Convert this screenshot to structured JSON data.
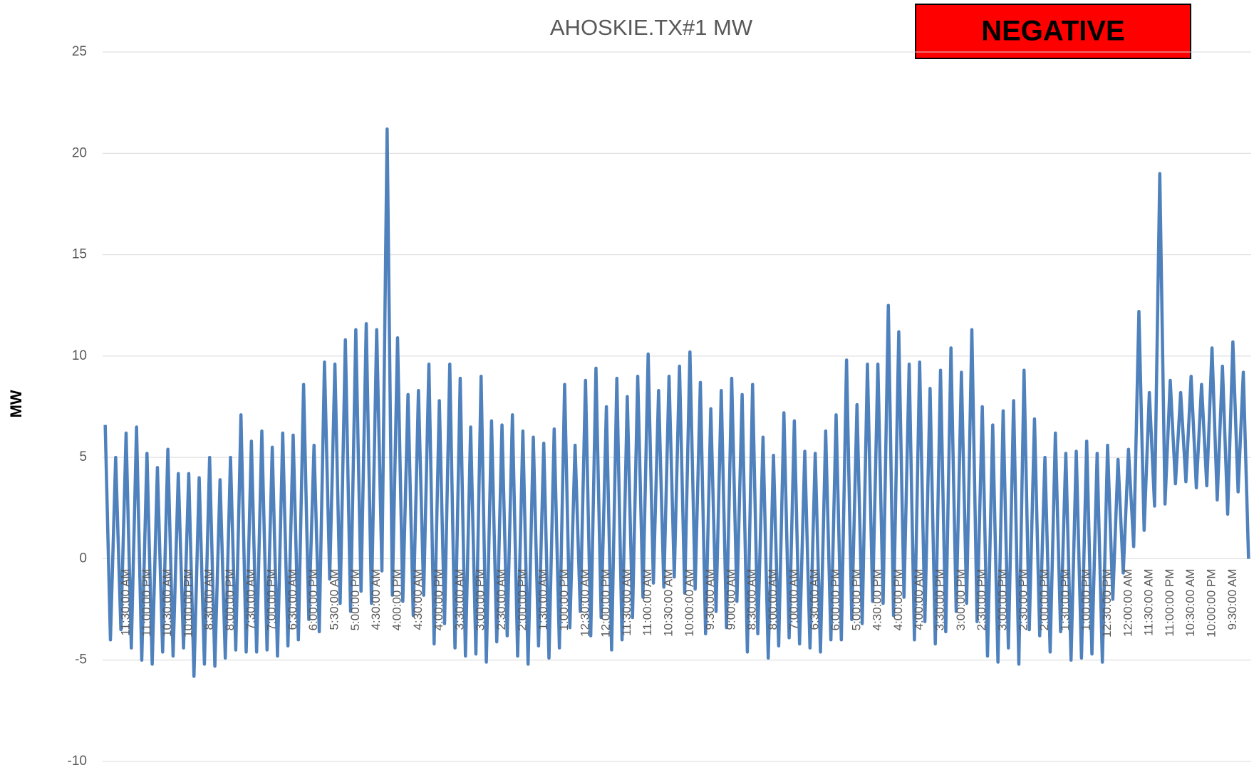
{
  "chart_data": {
    "type": "line",
    "title": "AHOSKIE.TX#1 MW",
    "annotation": "NEGATIVE",
    "y_label": "MW",
    "color": "#4f81bd",
    "ylim": [
      -10,
      25
    ],
    "yticks": [
      -10,
      -5,
      0,
      5,
      10,
      15,
      20,
      25
    ],
    "grid": true,
    "categories": [
      null,
      null,
      null,
      null,
      "11:30:00 AM",
      null,
      null,
      null,
      "11:00:00 PM",
      null,
      null,
      null,
      "10:30:00 AM",
      null,
      null,
      null,
      "10:00:00 PM",
      null,
      null,
      null,
      "8:30:00 AM",
      null,
      null,
      null,
      "8:00:00 PM",
      null,
      null,
      null,
      "7:30:00 AM",
      null,
      null,
      null,
      "7:00:00 PM",
      null,
      null,
      null,
      "6:30:00 AM",
      null,
      null,
      null,
      "6:00:00 PM",
      null,
      null,
      null,
      "5:30:00 AM",
      null,
      null,
      null,
      "5:00:00 PM",
      null,
      null,
      null,
      "4:30:00 AM",
      null,
      null,
      null,
      "4:00:00 PM",
      null,
      null,
      null,
      "4:30:00 AM",
      null,
      null,
      null,
      "4:00:00 PM",
      null,
      null,
      null,
      "3:30:00 AM",
      null,
      null,
      null,
      "3:00:00 PM",
      null,
      null,
      null,
      "2:30:00 AM",
      null,
      null,
      null,
      "2:00:00 PM",
      null,
      null,
      null,
      "1:30:00 AM",
      null,
      null,
      null,
      "1:00:00 PM",
      null,
      null,
      null,
      "12:30:00 AM",
      null,
      null,
      null,
      "12:00:00 PM",
      null,
      null,
      null,
      "11:30:00 AM",
      null,
      null,
      null,
      "11:00:00 AM",
      null,
      null,
      null,
      "10:30:00 AM",
      null,
      null,
      null,
      "10:00:00 AM",
      null,
      null,
      null,
      "9:30:00 AM",
      null,
      null,
      null,
      "9:00:00 AM",
      null,
      null,
      null,
      "8:30:00 AM",
      null,
      null,
      null,
      "8:00:00 AM",
      null,
      null,
      null,
      "7:00:00 AM",
      null,
      null,
      null,
      "6:30:00 AM",
      null,
      null,
      null,
      "6:00:00 PM",
      null,
      null,
      null,
      "5:00:00 PM",
      null,
      null,
      null,
      "4:30:00 PM",
      null,
      null,
      null,
      "4:00:00 PM",
      null,
      null,
      null,
      "4:00:00 AM",
      null,
      null,
      null,
      "3:30:00 PM",
      null,
      null,
      null,
      "3:00:00 PM",
      null,
      null,
      null,
      "2:30:00 PM",
      null,
      null,
      null,
      "3:00:00 PM",
      null,
      null,
      null,
      "2:30:00 PM",
      null,
      null,
      null,
      "2:00:00 PM",
      null,
      null,
      null,
      "1:30:00 PM",
      null,
      null,
      null,
      "1:00:00 PM",
      null,
      null,
      null,
      "12:30:00 PM",
      null,
      null,
      null,
      "12:00:00 AM",
      null,
      null,
      null,
      "11:30:00 AM",
      null,
      null,
      null,
      "11:00:00 PM",
      null,
      null,
      null,
      "10:30:00 AM",
      null,
      null,
      null,
      "10:00:00 PM",
      null,
      null,
      null,
      "9:30:00 AM",
      null,
      null,
      null
    ],
    "values": [
      6.6,
      -4,
      5,
      -3.5,
      6.2,
      -4.4,
      6.5,
      -5,
      5.2,
      -5.2,
      4.5,
      -4.6,
      5.4,
      -4.8,
      4.2,
      -4.4,
      4.2,
      -5.8,
      4.0,
      -5.2,
      5,
      -5.3,
      3.9,
      -4.9,
      5,
      -4.5,
      7.1,
      -4.6,
      5.8,
      -4.6,
      6.3,
      -4.5,
      5.5,
      -4.8,
      6.2,
      -4.3,
      6.1,
      -4,
      8.6,
      -3,
      5.6,
      -3.6,
      9.7,
      -1,
      9.6,
      -2.2,
      10.8,
      -2.6,
      11.3,
      -1.6,
      11.6,
      -2.2,
      11.3,
      -0.6,
      21.2,
      -1.8,
      10.9,
      -2.1,
      8.1,
      -2.8,
      8.3,
      -1.8,
      9.6,
      -4.2,
      7.8,
      -3.2,
      9.6,
      -4.4,
      8.9,
      -4.8,
      6.5,
      -4.7,
      9.0,
      -5.1,
      6.8,
      -4.1,
      6.6,
      -3.8,
      7.1,
      -4.8,
      6.3,
      -5.2,
      6.0,
      -4.3,
      5.7,
      -4.9,
      6.4,
      -4.4,
      8.6,
      -3.4,
      5.6,
      -2.6,
      8.8,
      -3.8,
      9.4,
      -2.9,
      7.5,
      -4.5,
      8.9,
      -4,
      8.0,
      -2.9,
      9.0,
      -1.9,
      10.1,
      -1.2,
      8.3,
      -1.4,
      9.0,
      -0.9,
      9.5,
      -1.7,
      10.2,
      -1.5,
      8.7,
      -3.7,
      7.4,
      -2.6,
      8.3,
      -3.4,
      8.9,
      -2.1,
      8.1,
      -4.6,
      8.6,
      -3.7,
      6.0,
      -4.9,
      5.1,
      -4.3,
      7.2,
      -3.9,
      6.8,
      -4.2,
      5.3,
      -4.4,
      5.2,
      -4.6,
      6.3,
      -4.0,
      7.1,
      -4.0,
      9.8,
      -3.0,
      7.6,
      -3.2,
      9.6,
      -2.1,
      9.6,
      -2.2,
      12.5,
      -2.8,
      11.2,
      -1.9,
      9.6,
      -4.0,
      9.7,
      -3.1,
      8.4,
      -4.2,
      9.3,
      -3.6,
      10.4,
      -2.6,
      9.2,
      -2.2,
      11.3,
      -3.1,
      7.5,
      -4.8,
      6.6,
      -5.1,
      7.3,
      -4.4,
      7.8,
      -5.2,
      9.3,
      -3.5,
      6.9,
      -3.8,
      5.0,
      -4.6,
      6.2,
      -3.6,
      5.2,
      -5.0,
      5.3,
      -4.9,
      5.8,
      -4.7,
      5.2,
      -5.1,
      5.6,
      -2.0,
      4.9,
      -0.7,
      5.4,
      0.6,
      12.2,
      1.4,
      8.2,
      2.6,
      19.0,
      2.7,
      8.8,
      3.7,
      8.2,
      3.8,
      9.0,
      3.5,
      8.6,
      3.6,
      10.4,
      2.9,
      9.5,
      2.2,
      10.7,
      3.3,
      9.2,
      0
    ]
  }
}
